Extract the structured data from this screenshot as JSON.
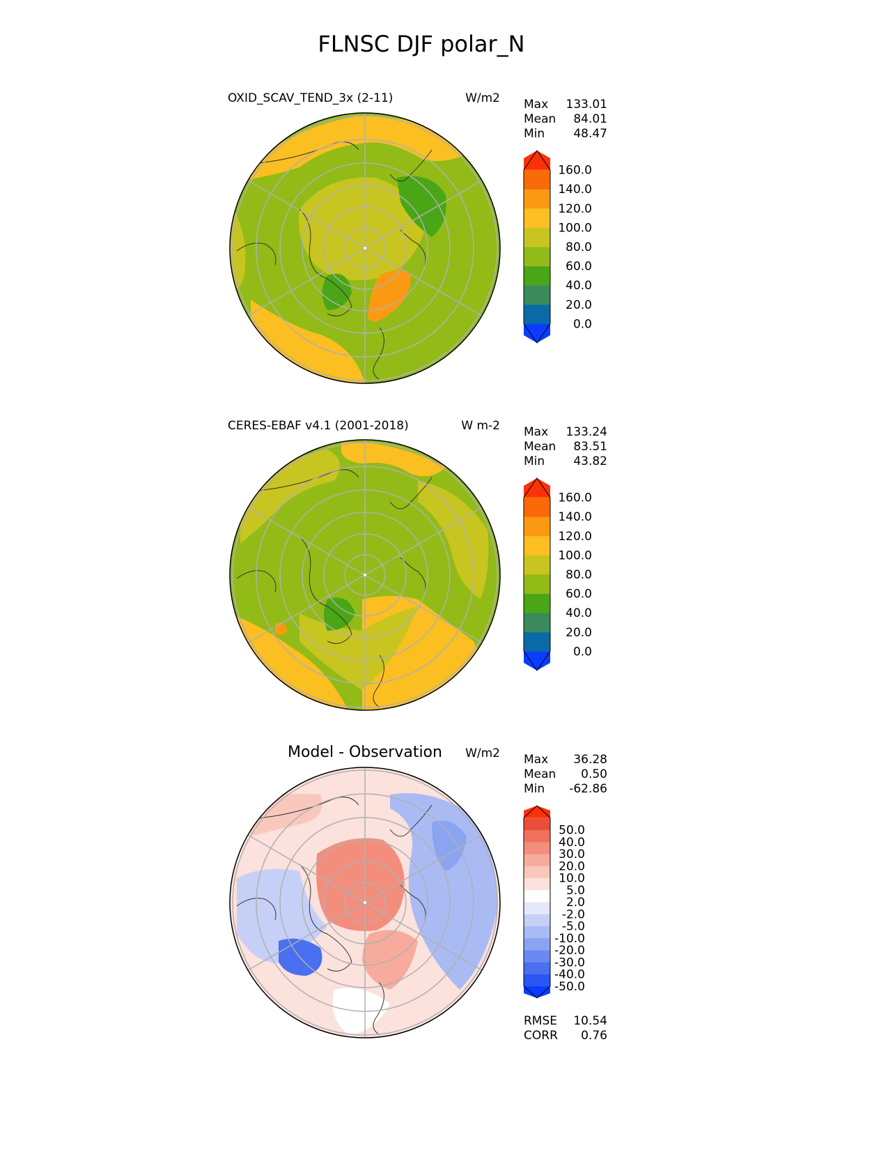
{
  "title": "FLNSC DJF polar_N",
  "panels": [
    {
      "name": "OXID_SCAV_TEND_3x (2-11)",
      "units": "W/m2",
      "stats": [
        {
          "label": "Max",
          "value": "133.01"
        },
        {
          "label": "Mean",
          "value": "84.01"
        },
        {
          "label": "Min",
          "value": "48.47"
        }
      ]
    },
    {
      "name": "CERES-EBAF v4.1 (2001-2018)",
      "units": "W m-2",
      "stats": [
        {
          "label": "Max",
          "value": "133.24"
        },
        {
          "label": "Mean",
          "value": "83.51"
        },
        {
          "label": "Min",
          "value": "43.82"
        }
      ]
    },
    {
      "name": "Model - Observation",
      "units": "W/m2",
      "stats": [
        {
          "label": "Max",
          "value": "36.28"
        },
        {
          "label": "Mean",
          "value": "0.50"
        },
        {
          "label": "Min",
          "value": "-62.86"
        }
      ],
      "extra_stats": [
        {
          "label": "RMSE",
          "value": "10.54"
        },
        {
          "label": "CORR",
          "value": "0.76"
        }
      ]
    }
  ],
  "colorbars": {
    "field": {
      "levels": [
        "0.0",
        "20.0",
        "40.0",
        "60.0",
        "80.0",
        "100.0",
        "120.0",
        "140.0",
        "160.0"
      ],
      "colors": [
        "#0a3cff",
        "#0a6aa8",
        "#3a8a5e",
        "#4aa616",
        "#92bb18",
        "#c8c520",
        "#fbbf22",
        "#fb9a12",
        "#fb6a08",
        "#fb3208"
      ]
    },
    "diff": {
      "levels": [
        "-50.0",
        "-40.0",
        "-30.0",
        "-20.0",
        "-10.0",
        "-5.0",
        "-2.0",
        "2.0",
        "5.0",
        "10.0",
        "20.0",
        "30.0",
        "40.0",
        "50.0"
      ],
      "colors": [
        "#0a3cff",
        "#2a55f2",
        "#4a70f0",
        "#6a8af0",
        "#8aa4f2",
        "#aabbf4",
        "#c6d0f6",
        "#e4e8fa",
        "#ffffff",
        "#fbe2dc",
        "#f9c8bd",
        "#f7ab9c",
        "#f48e7c",
        "#f0705c",
        "#ea4e3a",
        "#fb3208"
      ]
    }
  },
  "chart_data": [
    {
      "type": "heatmap",
      "title": "OXID_SCAV_TEND_3x (2-11)",
      "projection": "north polar stereographic",
      "units": "W/m2",
      "levels": [
        0,
        20,
        40,
        60,
        80,
        100,
        120,
        140,
        160
      ],
      "stats": {
        "max": 133.01,
        "mean": 84.01,
        "min": 48.47
      }
    },
    {
      "type": "heatmap",
      "title": "CERES-EBAF v4.1 (2001-2018)",
      "projection": "north polar stereographic",
      "units": "W m-2",
      "levels": [
        0,
        20,
        40,
        60,
        80,
        100,
        120,
        140,
        160
      ],
      "stats": {
        "max": 133.24,
        "mean": 83.51,
        "min": 43.82
      }
    },
    {
      "type": "heatmap",
      "title": "Model - Observation",
      "projection": "north polar stereographic",
      "units": "W/m2",
      "levels": [
        -50,
        -40,
        -30,
        -20,
        -10,
        -5,
        -2,
        2,
        5,
        10,
        20,
        30,
        40,
        50
      ],
      "stats": {
        "max": 36.28,
        "mean": 0.5,
        "min": -62.86,
        "rmse": 10.54,
        "corr": 0.76
      }
    }
  ]
}
